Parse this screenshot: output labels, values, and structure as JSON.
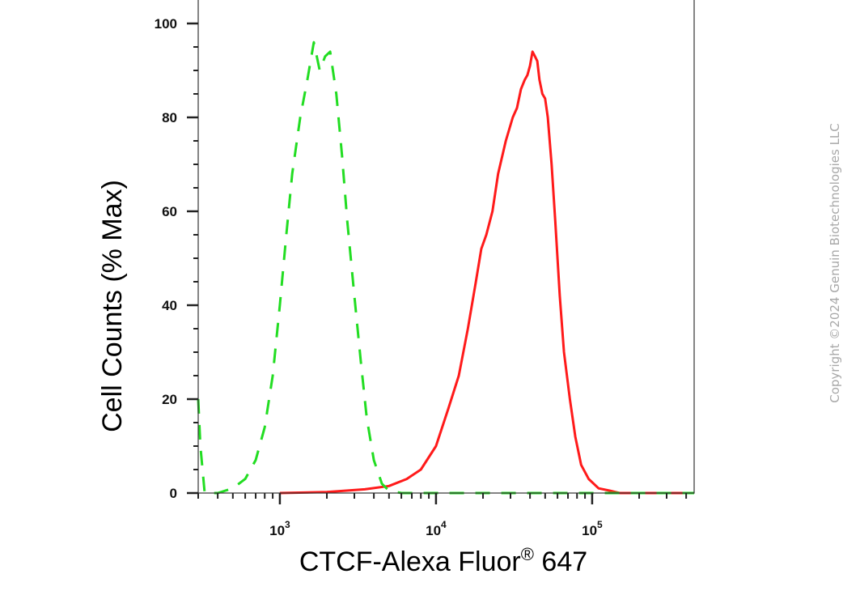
{
  "chart_data": {
    "type": "line",
    "xlabel": "CTCF-Alexa Fluor",
    "xlabel_superscript": "®",
    "xlabel_suffix": " 647",
    "ylabel": "Cell Counts (% Max)",
    "x_scale": "log",
    "xlim": [
      300,
      450000
    ],
    "ylim": [
      0,
      105
    ],
    "y_ticks": [
      0,
      20,
      40,
      60,
      80,
      100
    ],
    "x_ticks": [
      {
        "value": 1000,
        "base": "10",
        "exp": "3"
      },
      {
        "value": 10000,
        "base": "10",
        "exp": "4"
      },
      {
        "value": 100000,
        "base": "10",
        "exp": "5"
      }
    ],
    "grid": false,
    "series": [
      {
        "color": "#ff1a1a",
        "style": "solid",
        "x": [
          1000,
          2000,
          3500,
          5000,
          6500,
          8000,
          10000,
          12000,
          14000,
          16000,
          18000,
          19500,
          21000,
          23000,
          25000,
          28000,
          31000,
          33000,
          35000,
          37000,
          38500,
          40000,
          41500,
          43000,
          44500,
          46000,
          48000,
          50000,
          52000,
          55000,
          58000,
          62000,
          66000,
          72000,
          78000,
          85000,
          95000,
          110000,
          130000,
          150000,
          200000,
          300000,
          450000
        ],
        "y": [
          0,
          0.2,
          0.8,
          1.5,
          3,
          5,
          10,
          18,
          25,
          35,
          45,
          52,
          55,
          60,
          68,
          75,
          80,
          82,
          86,
          88,
          89,
          91,
          94,
          93,
          92,
          88,
          85,
          84,
          80,
          70,
          58,
          42,
          30,
          20,
          12,
          6,
          3,
          1,
          0.5,
          0,
          0,
          0,
          0
        ]
      },
      {
        "color": "#22dd22",
        "style": "dashed",
        "x": [
          300,
          310,
          330,
          400,
          500,
          600,
          700,
          800,
          900,
          1000,
          1100,
          1200,
          1350,
          1500,
          1650,
          1800,
          1950,
          2100,
          2300,
          2500,
          2700,
          3000,
          3300,
          3600,
          4000,
          4500,
          5000,
          6000,
          7000,
          10000,
          100000,
          450000
        ],
        "y": [
          20,
          10,
          0,
          0,
          1,
          3,
          7,
          14,
          25,
          40,
          55,
          68,
          80,
          88,
          96,
          90,
          93,
          94,
          85,
          72,
          58,
          42,
          28,
          16,
          7,
          2,
          0.5,
          0,
          0,
          0,
          0,
          0
        ]
      }
    ],
    "copyright": "Copyright ©2024 Genuin Biotechnologies LLC"
  }
}
